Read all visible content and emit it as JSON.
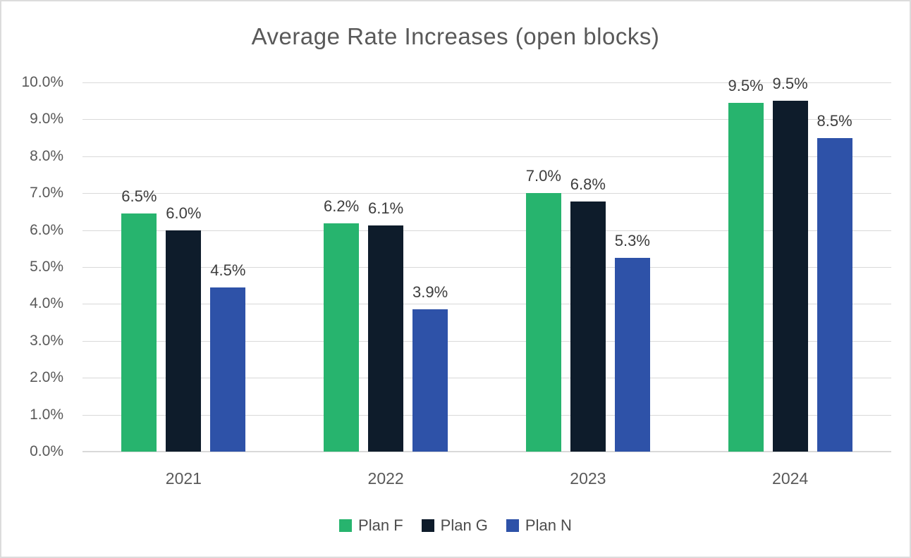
{
  "chart_data": {
    "type": "bar",
    "title": "Average Rate Increases (open blocks)",
    "categories": [
      "2021",
      "2022",
      "2023",
      "2024"
    ],
    "series": [
      {
        "name": "Plan F",
        "color": "#27b46e",
        "values": [
          6.5,
          6.2,
          7.0,
          9.5
        ],
        "labels": [
          "6.5%",
          "6.2%",
          "7.0%",
          "9.5%"
        ],
        "draw_heights_pct": [
          6.45,
          6.18,
          7.0,
          9.45
        ]
      },
      {
        "name": "Plan G",
        "color": "#0e1c2b",
        "values": [
          6.0,
          6.1,
          6.8,
          9.5
        ],
        "labels": [
          "6.0%",
          "6.1%",
          "6.8%",
          "9.5%"
        ],
        "draw_heights_pct": [
          6.0,
          6.12,
          6.78,
          9.5
        ]
      },
      {
        "name": "Plan N",
        "color": "#2e52a8",
        "values": [
          4.5,
          3.9,
          5.3,
          8.5
        ],
        "labels": [
          "4.5%",
          "3.9%",
          "5.3%",
          "8.5%"
        ],
        "draw_heights_pct": [
          4.45,
          3.85,
          5.25,
          8.5
        ]
      }
    ],
    "y_axis": {
      "min": 0,
      "max": 10,
      "step": 1,
      "tick_labels": [
        "0.0%",
        "1.0%",
        "2.0%",
        "3.0%",
        "4.0%",
        "5.0%",
        "6.0%",
        "7.0%",
        "8.0%",
        "9.0%",
        "10.0%"
      ]
    },
    "grid": true,
    "legend_position": "bottom",
    "colors": {
      "gridline": "#d9d9d9",
      "axis_text": "#595959",
      "data_label_text": "#3d3d3d",
      "title_text": "#595959",
      "background": "#ffffff"
    }
  }
}
